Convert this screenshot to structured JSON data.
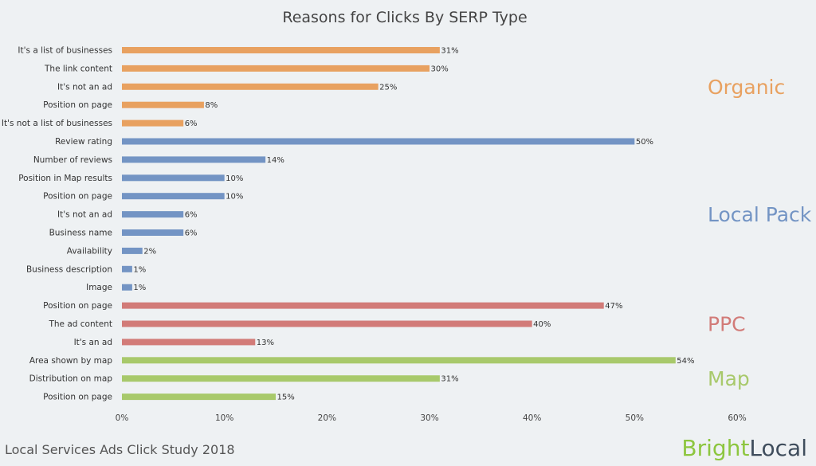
{
  "chart_data": {
    "type": "bar",
    "orientation": "horizontal",
    "title": "Reasons for Clicks By SERP Type",
    "xlim": [
      0,
      60
    ],
    "xticks": [
      0,
      10,
      20,
      30,
      40,
      50,
      60
    ],
    "tick_suffix": "%",
    "value_suffix": "%",
    "groups": [
      {
        "name": "Organic",
        "color": "#e8a160",
        "items": [
          {
            "label": "It's a list of businesses",
            "value": 31
          },
          {
            "label": "The link content",
            "value": 30
          },
          {
            "label": "It's not an ad",
            "value": 25
          },
          {
            "label": "Position on page",
            "value": 8
          },
          {
            "label": "It's not a list of businesses",
            "value": 6
          }
        ]
      },
      {
        "name": "Local Pack",
        "color": "#7394c4",
        "items": [
          {
            "label": "Review rating",
            "value": 50
          },
          {
            "label": "Number of reviews",
            "value": 14
          },
          {
            "label": "Position in Map results",
            "value": 10
          },
          {
            "label": "Position on page",
            "value": 10
          },
          {
            "label": "It's not an ad",
            "value": 6
          },
          {
            "label": "Business name",
            "value": 6
          },
          {
            "label": "Availability",
            "value": 2
          },
          {
            "label": "Business description",
            "value": 1
          },
          {
            "label": "Image",
            "value": 1
          }
        ]
      },
      {
        "name": "PPC",
        "color": "#d27b78",
        "items": [
          {
            "label": "Position on page",
            "value": 47
          },
          {
            "label": "The ad content",
            "value": 40
          },
          {
            "label": "It's an ad",
            "value": 13
          }
        ]
      },
      {
        "name": "Map",
        "color": "#a8c96b",
        "items": [
          {
            "label": "Area shown by map",
            "value": 54
          },
          {
            "label": "Distribution on map",
            "value": 31
          },
          {
            "label": "Position on page",
            "value": 15
          }
        ]
      }
    ]
  },
  "footer": {
    "study": "Local Services Ads Click Study 2018",
    "brand_part1": "Bright",
    "brand_part2": "Local"
  }
}
